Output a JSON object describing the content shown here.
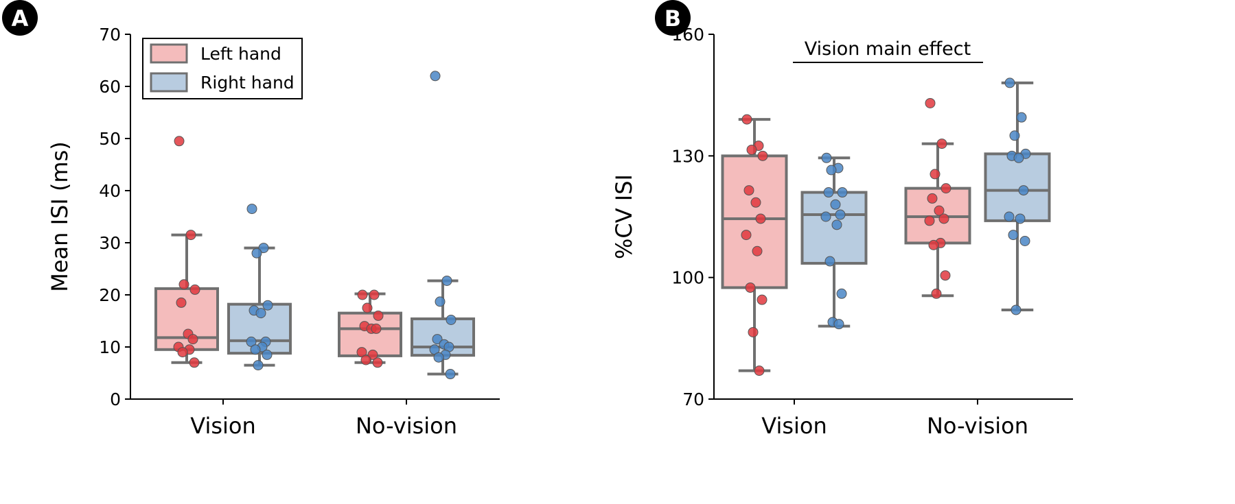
{
  "panels": [
    {
      "letter": "A",
      "chart_data": {
        "type": "box",
        "ylabel": "Mean ISI (ms)",
        "xlabel": "",
        "ylim": [
          0,
          70
        ],
        "yticks": [
          0,
          10,
          20,
          30,
          40,
          50,
          60,
          70
        ],
        "categories": [
          "Vision",
          "No-vision"
        ],
        "legend": {
          "placement": "top-left",
          "entries": [
            "Left hand",
            "Right hand"
          ]
        },
        "series": [
          {
            "name": "Left hand",
            "color": "#e0383e",
            "box_color": "#f4bcbc",
            "boxes": [
              {
                "category": "Vision",
                "whisker_low": 7.0,
                "q1": 9.5,
                "median": 11.8,
                "q3": 21.2,
                "whisker_high": 31.5
              },
              {
                "category": "No-vision",
                "whisker_low": 7.0,
                "q1": 8.3,
                "median": 13.5,
                "q3": 16.5,
                "whisker_high": 20.2
              }
            ],
            "points": [
              {
                "category": "Vision",
                "values": [
                  49.5,
                  31.5,
                  22.0,
                  21.0,
                  18.5,
                  12.5,
                  11.5,
                  10.0,
                  9.5,
                  9.0,
                  7.0
                ]
              },
              {
                "category": "No-vision",
                "values": [
                  20.0,
                  20.0,
                  17.5,
                  16.0,
                  14.0,
                  13.5,
                  13.5,
                  9.0,
                  8.5,
                  7.5,
                  7.0
                ]
              }
            ]
          },
          {
            "name": "Right hand",
            "color": "#4a86c6",
            "box_color": "#b8cce0",
            "boxes": [
              {
                "category": "Vision",
                "whisker_low": 6.5,
                "q1": 8.8,
                "median": 11.2,
                "q3": 18.2,
                "whisker_high": 29.0
              },
              {
                "category": "No-vision",
                "whisker_low": 4.8,
                "q1": 8.4,
                "median": 10.0,
                "q3": 15.4,
                "whisker_high": 22.7
              }
            ],
            "points": [
              {
                "category": "Vision",
                "values": [
                  36.5,
                  29.0,
                  28.0,
                  18.0,
                  17.0,
                  16.5,
                  11.0,
                  11.0,
                  10.0,
                  9.5,
                  8.5,
                  6.5
                ]
              },
              {
                "category": "No-vision",
                "values": [
                  62.0,
                  22.7,
                  18.7,
                  15.2,
                  11.5,
                  10.5,
                  10.0,
                  9.5,
                  8.5,
                  8.0,
                  4.8
                ]
              }
            ]
          }
        ]
      }
    },
    {
      "letter": "B",
      "chart_data": {
        "type": "box",
        "ylabel": "%CV ISI",
        "xlabel": "",
        "ylim": [
          70,
          160
        ],
        "yticks": [
          70,
          100,
          130,
          160
        ],
        "categories": [
          "Vision",
          "No-vision"
        ],
        "annotation": "Vision main effect",
        "series": [
          {
            "name": "Left hand",
            "color": "#e0383e",
            "box_color": "#f4bcbc",
            "boxes": [
              {
                "category": "Vision",
                "whisker_low": 77.0,
                "q1": 97.5,
                "median": 114.5,
                "q3": 130.0,
                "whisker_high": 139.0
              },
              {
                "category": "No-vision",
                "whisker_low": 95.5,
                "q1": 108.5,
                "median": 115.0,
                "q3": 122.0,
                "whisker_high": 133.0
              }
            ],
            "points": [
              {
                "category": "Vision",
                "values": [
                  139.0,
                  132.5,
                  131.5,
                  130.0,
                  121.5,
                  118.5,
                  114.5,
                  110.5,
                  106.5,
                  97.5,
                  94.5,
                  86.5,
                  77.0
                ]
              },
              {
                "category": "No-vision",
                "values": [
                  143.0,
                  133.0,
                  125.5,
                  122.0,
                  119.5,
                  116.5,
                  114.5,
                  114.0,
                  108.5,
                  108.0,
                  100.5,
                  96.0
                ]
              }
            ]
          },
          {
            "name": "Right hand",
            "color": "#4a86c6",
            "box_color": "#b8cce0",
            "boxes": [
              {
                "category": "Vision",
                "whisker_low": 88.0,
                "q1": 103.5,
                "median": 115.5,
                "q3": 121.0,
                "whisker_high": 129.5
              },
              {
                "category": "No-vision",
                "whisker_low": 92.0,
                "q1": 114.0,
                "median": 121.5,
                "q3": 130.5,
                "whisker_high": 148.0
              }
            ],
            "points": [
              {
                "category": "Vision",
                "values": [
                  129.5,
                  127.0,
                  126.5,
                  121.0,
                  121.0,
                  118.0,
                  115.5,
                  115.0,
                  113.0,
                  104.0,
                  96.0,
                  89.0,
                  88.5
                ]
              },
              {
                "category": "No-vision",
                "values": [
                  148.0,
                  139.5,
                  135.0,
                  130.5,
                  130.0,
                  129.5,
                  121.5,
                  115.0,
                  114.5,
                  110.5,
                  109.0,
                  92.0
                ]
              }
            ]
          }
        ]
      }
    }
  ]
}
